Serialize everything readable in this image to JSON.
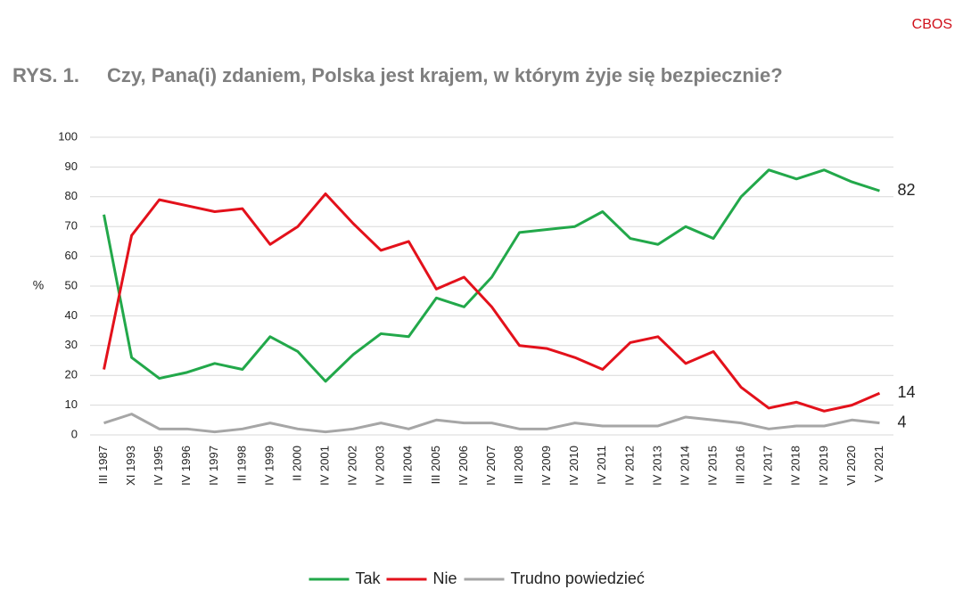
{
  "source": "CBOS",
  "figure_label": "RYS. 1.",
  "chart_data": {
    "type": "line",
    "title": "Czy, Pana(i) zdaniem, Polska jest krajem, w którym żyje się bezpiecznie?",
    "y_label": "%",
    "categories": [
      "III 1987",
      "XI 1993",
      "IV 1995",
      "IV 1996",
      "IV 1997",
      "III 1998",
      "IV 1999",
      "II 2000",
      "IV 2001",
      "IV 2002",
      "IV 2003",
      "III 2004",
      "III 2005",
      "IV 2006",
      "IV 2007",
      "III 2008",
      "IV 2009",
      "IV 2010",
      "IV 2011",
      "IV 2012",
      "IV 2013",
      "IV 2014",
      "IV 2015",
      "III 2016",
      "IV 2017",
      "IV 2018",
      "IV 2019",
      "VI 2020",
      "V 2021"
    ],
    "series": [
      {
        "name": "Tak",
        "color": "#22a84a",
        "values": [
          74,
          26,
          19,
          21,
          24,
          22,
          33,
          28,
          18,
          27,
          34,
          33,
          46,
          43,
          53,
          68,
          69,
          70,
          75,
          66,
          64,
          70,
          66,
          80,
          89,
          86,
          89,
          85,
          82
        ]
      },
      {
        "name": "Nie",
        "color": "#e3111b",
        "values": [
          22,
          67,
          79,
          77,
          75,
          76,
          64,
          70,
          81,
          71,
          62,
          65,
          49,
          53,
          43,
          30,
          29,
          26,
          22,
          31,
          33,
          24,
          28,
          16,
          9,
          11,
          8,
          10,
          14
        ]
      },
      {
        "name": "Trudno powiedzieć",
        "color": "#a6a6a6",
        "values": [
          4,
          7,
          2,
          2,
          1,
          2,
          4,
          2,
          1,
          2,
          4,
          2,
          5,
          4,
          4,
          2,
          2,
          4,
          3,
          3,
          3,
          6,
          5,
          4,
          2,
          3,
          3,
          5,
          4
        ]
      }
    ],
    "ylim": [
      0,
      100
    ],
    "yticks": [
      0,
      10,
      20,
      30,
      40,
      50,
      60,
      70,
      80,
      90,
      100
    ],
    "grid": true,
    "legend": "bottom"
  }
}
